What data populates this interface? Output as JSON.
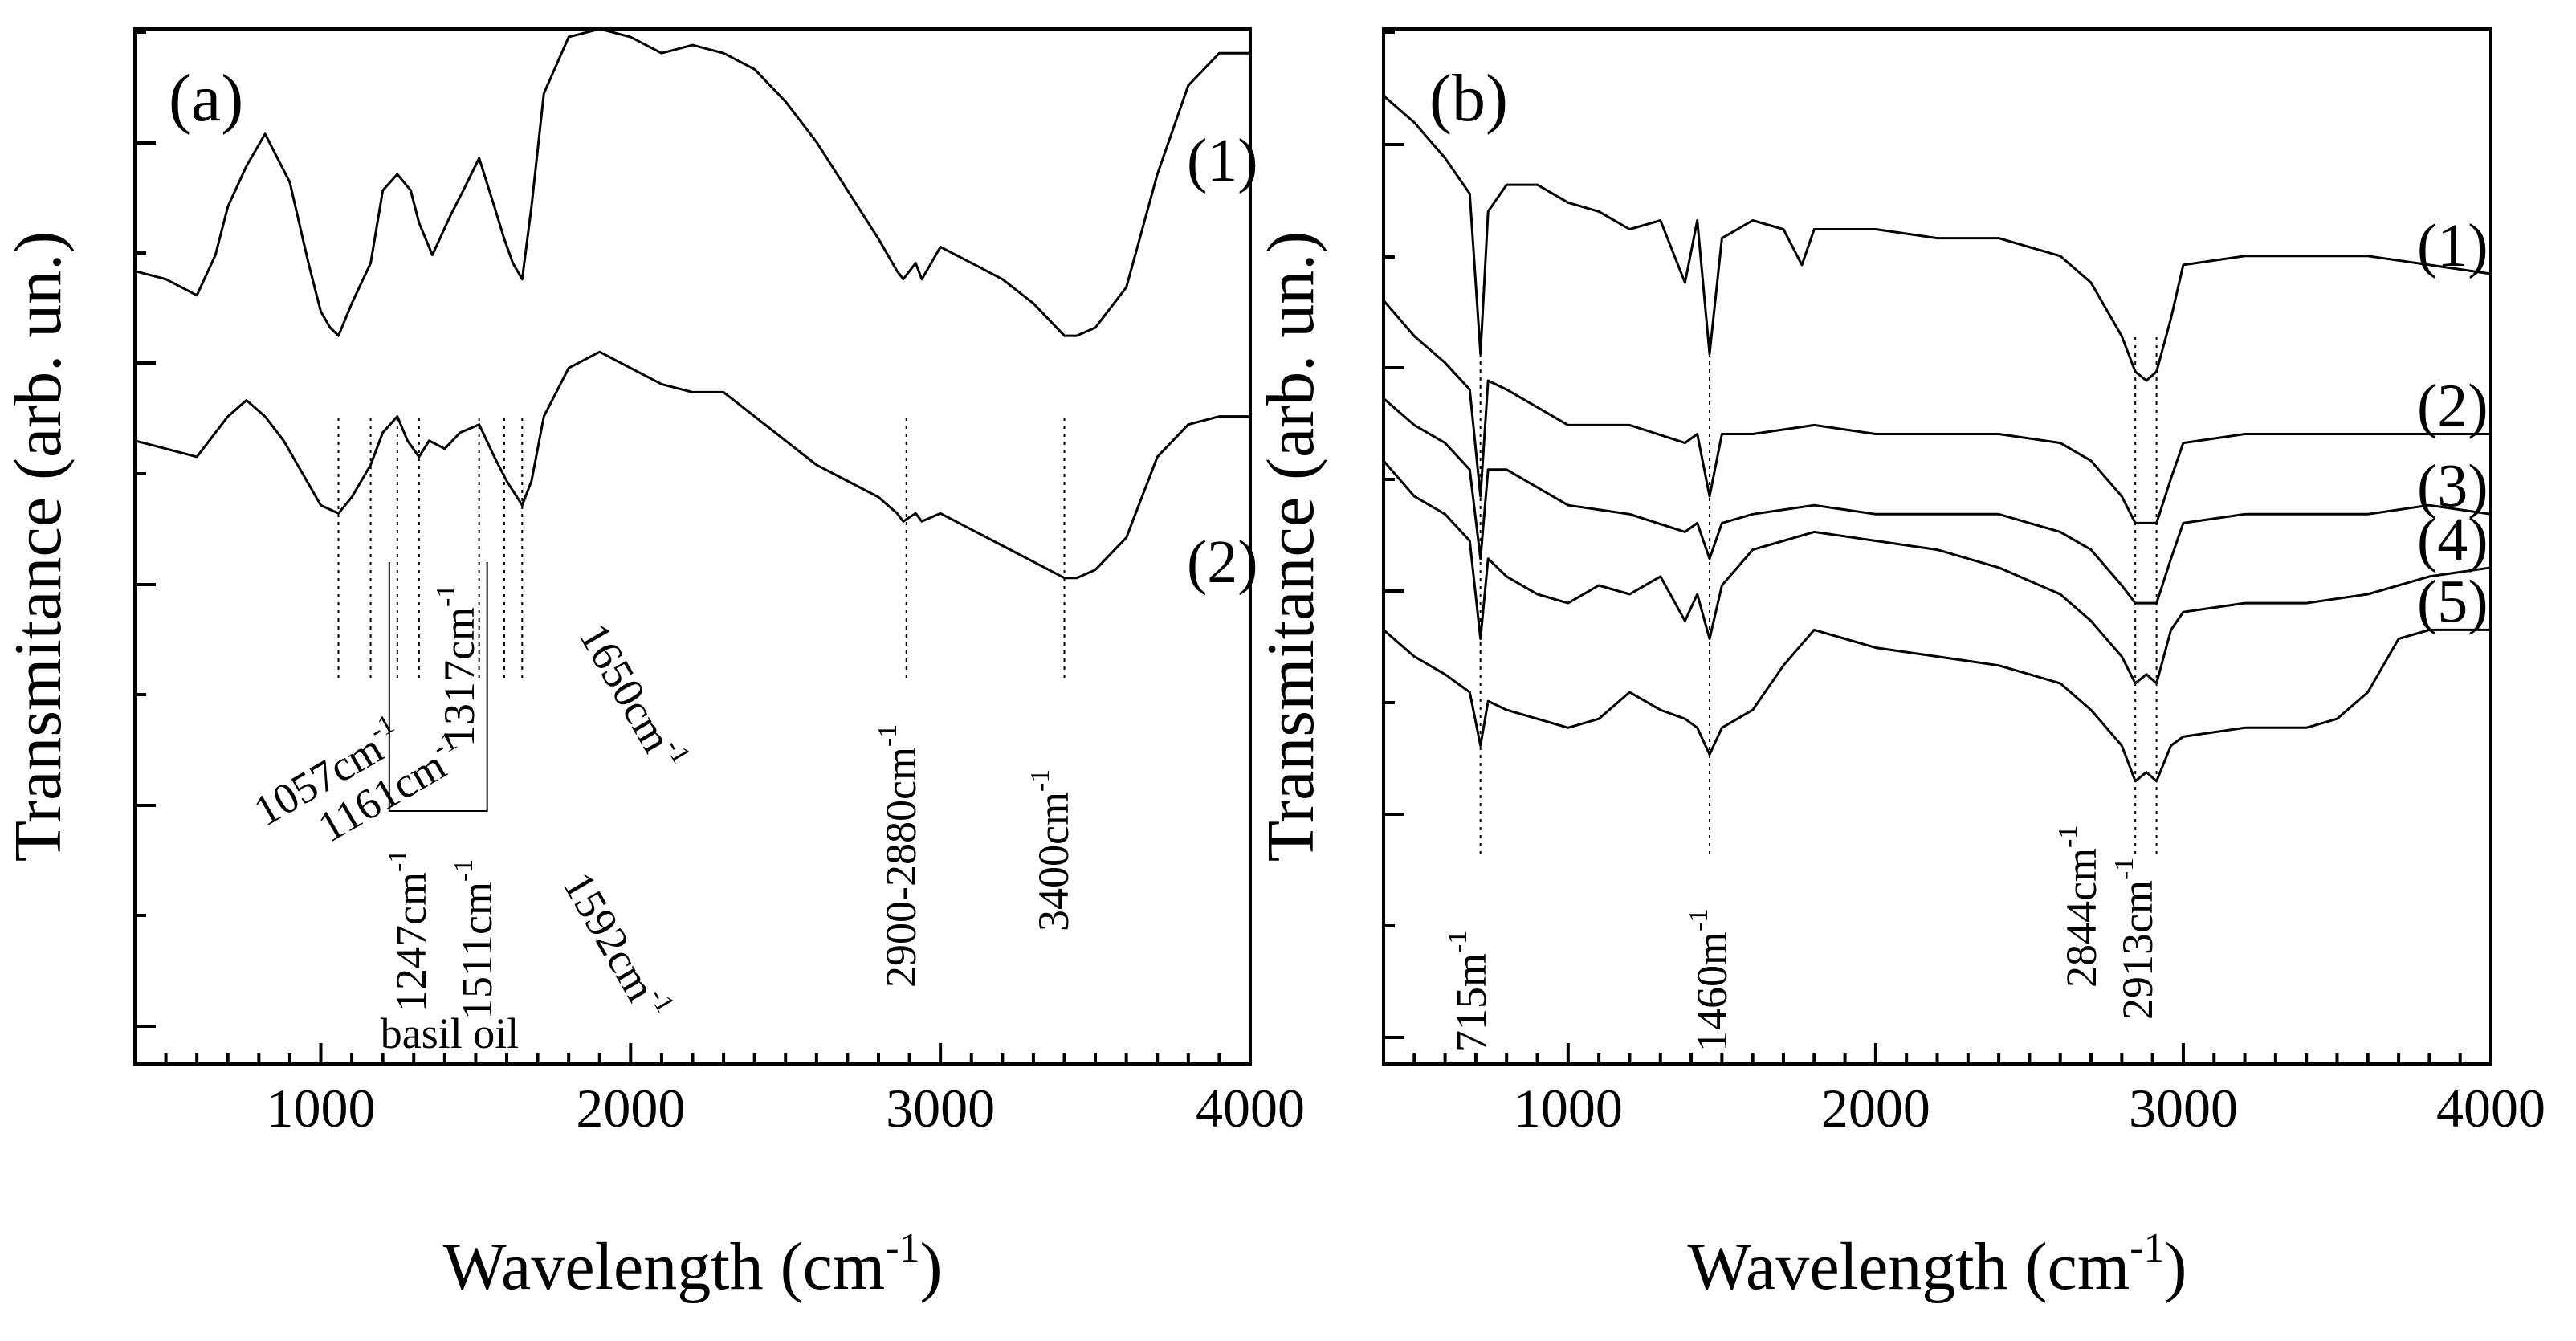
{
  "chart_data": [
    {
      "type": "line",
      "panel_label": "(a)",
      "xlabel": "Wavelength (cm",
      "xlabel_sup": "-1",
      "xlabel_end": ")",
      "ylabel": "Transmitance (arb. un.)",
      "xlim": [
        400,
        4000
      ],
      "ylim": [
        0,
        1
      ],
      "xticks": [
        1000,
        2000,
        3000,
        4000
      ],
      "xtick_labels": [
        "1000",
        "2000",
        "3000",
        "4000"
      ],
      "y_tick_labels_shown": false,
      "series": [
        {
          "name": "(1)",
          "x": [
            400,
            500,
            600,
            660,
            700,
            760,
            820,
            900,
            960,
            1000,
            1030,
            1057,
            1100,
            1161,
            1200,
            1247,
            1290,
            1317,
            1360,
            1420,
            1460,
            1511,
            1560,
            1592,
            1620,
            1650,
            1680,
            1720,
            1800,
            1900,
            2000,
            2100,
            2200,
            2300,
            2400,
            2500,
            2600,
            2700,
            2800,
            2860,
            2880,
            2920,
            2940,
            3000,
            3100,
            3200,
            3300,
            3400,
            3440,
            3500,
            3600,
            3700,
            3800,
            3900,
            4000
          ],
          "y": [
            0.7,
            0.69,
            0.67,
            0.72,
            0.78,
            0.83,
            0.87,
            0.81,
            0.71,
            0.65,
            0.63,
            0.62,
            0.66,
            0.71,
            0.8,
            0.82,
            0.8,
            0.76,
            0.72,
            0.77,
            0.8,
            0.84,
            0.78,
            0.74,
            0.71,
            0.69,
            0.78,
            0.92,
            0.99,
            1.0,
            0.99,
            0.97,
            0.98,
            0.97,
            0.95,
            0.91,
            0.86,
            0.8,
            0.74,
            0.7,
            0.69,
            0.71,
            0.69,
            0.73,
            0.71,
            0.69,
            0.66,
            0.62,
            0.62,
            0.63,
            0.68,
            0.82,
            0.93,
            0.97,
            0.97
          ]
        },
        {
          "name": "(2)",
          "x": [
            400,
            500,
            600,
            700,
            760,
            820,
            880,
            940,
            1000,
            1057,
            1100,
            1161,
            1200,
            1247,
            1280,
            1317,
            1350,
            1400,
            1450,
            1511,
            1560,
            1600,
            1650,
            1680,
            1720,
            1800,
            1900,
            2000,
            2100,
            2200,
            2300,
            2400,
            2500,
            2600,
            2700,
            2800,
            2860,
            2880,
            2920,
            2940,
            3000,
            3100,
            3200,
            3300,
            3400,
            3440,
            3500,
            3600,
            3700,
            3800,
            3900,
            4000
          ],
          "y": [
            0.49,
            0.48,
            0.47,
            0.52,
            0.54,
            0.52,
            0.49,
            0.45,
            0.41,
            0.4,
            0.42,
            0.46,
            0.5,
            0.52,
            0.49,
            0.47,
            0.49,
            0.48,
            0.5,
            0.51,
            0.47,
            0.44,
            0.41,
            0.44,
            0.52,
            0.58,
            0.6,
            0.58,
            0.56,
            0.55,
            0.55,
            0.52,
            0.49,
            0.46,
            0.44,
            0.42,
            0.4,
            0.39,
            0.4,
            0.39,
            0.4,
            0.38,
            0.36,
            0.34,
            0.32,
            0.32,
            0.33,
            0.37,
            0.47,
            0.51,
            0.52,
            0.52
          ]
        }
      ],
      "annotations": [
        {
          "x": 1057,
          "text": "1057cm",
          "sup": "-1"
        },
        {
          "x": 1161,
          "text": "1161cm",
          "sup": "-1"
        },
        {
          "x": 1247,
          "text": "1247cm",
          "sup": "-1"
        },
        {
          "x": 1317,
          "text": "1317cm",
          "sup": "-1"
        },
        {
          "x": 1511,
          "text": "1511cm",
          "sup": "-1"
        },
        {
          "x": 1592,
          "text": "1592cm",
          "sup": "-1"
        },
        {
          "x": 1650,
          "text": "1650cm",
          "sup": "-1"
        },
        {
          "x": 2890,
          "text": "2900-2880cm",
          "sup": "-1"
        },
        {
          "x": 3400,
          "text": "3400cm",
          "sup": "-1"
        }
      ],
      "bracket_label": "basil oil"
    },
    {
      "type": "line",
      "panel_label": "(b)",
      "xlabel": "Wavelength (cm",
      "xlabel_sup": "-1",
      "xlabel_end": ")",
      "ylabel": "Transmitance (arb. un.)",
      "xlim": [
        400,
        4000
      ],
      "ylim": [
        0,
        1
      ],
      "xticks": [
        1000,
        2000,
        3000,
        4000
      ],
      "xtick_labels": [
        "1000",
        "2000",
        "3000",
        "4000"
      ],
      "y_tick_labels_shown": false,
      "series": [
        {
          "name": "(1)",
          "x": [
            400,
            500,
            600,
            680,
            715,
            740,
            800,
            900,
            1000,
            1100,
            1200,
            1300,
            1380,
            1420,
            1460,
            1500,
            1600,
            1700,
            1760,
            1800,
            1900,
            2000,
            2200,
            2400,
            2600,
            2700,
            2800,
            2844,
            2880,
            2913,
            2960,
            3000,
            3200,
            3400,
            3600,
            3800,
            4000
          ],
          "y": [
            0.97,
            0.94,
            0.9,
            0.86,
            0.68,
            0.84,
            0.87,
            0.87,
            0.85,
            0.84,
            0.82,
            0.83,
            0.76,
            0.83,
            0.68,
            0.81,
            0.83,
            0.82,
            0.78,
            0.82,
            0.82,
            0.82,
            0.81,
            0.81,
            0.79,
            0.76,
            0.7,
            0.66,
            0.65,
            0.66,
            0.72,
            0.78,
            0.79,
            0.79,
            0.79,
            0.78,
            0.77
          ]
        },
        {
          "name": "(2)",
          "x": [
            400,
            500,
            600,
            680,
            715,
            740,
            800,
            900,
            1000,
            1200,
            1380,
            1420,
            1460,
            1500,
            1600,
            1800,
            2000,
            2200,
            2400,
            2600,
            2700,
            2800,
            2844,
            2880,
            2913,
            2960,
            3000,
            3200,
            3400,
            3600,
            3800,
            4000
          ],
          "y": [
            0.74,
            0.7,
            0.67,
            0.64,
            0.52,
            0.65,
            0.64,
            0.62,
            0.6,
            0.6,
            0.58,
            0.59,
            0.52,
            0.59,
            0.59,
            0.6,
            0.59,
            0.59,
            0.59,
            0.58,
            0.56,
            0.52,
            0.49,
            0.49,
            0.49,
            0.54,
            0.58,
            0.59,
            0.59,
            0.59,
            0.59,
            0.59
          ]
        },
        {
          "name": "(3)",
          "x": [
            400,
            500,
            600,
            680,
            715,
            740,
            800,
            900,
            1000,
            1200,
            1380,
            1420,
            1460,
            1500,
            1600,
            1800,
            2000,
            2200,
            2400,
            2600,
            2700,
            2800,
            2844,
            2880,
            2913,
            2960,
            3000,
            3200,
            3400,
            3600,
            3800,
            4000
          ],
          "y": [
            0.63,
            0.6,
            0.58,
            0.55,
            0.45,
            0.55,
            0.55,
            0.53,
            0.51,
            0.5,
            0.48,
            0.49,
            0.45,
            0.49,
            0.5,
            0.51,
            0.5,
            0.5,
            0.5,
            0.48,
            0.46,
            0.42,
            0.4,
            0.4,
            0.4,
            0.45,
            0.49,
            0.5,
            0.5,
            0.5,
            0.51,
            0.5
          ]
        },
        {
          "name": "(4)",
          "x": [
            400,
            500,
            600,
            680,
            715,
            740,
            800,
            900,
            1000,
            1100,
            1200,
            1300,
            1380,
            1420,
            1460,
            1500,
            1600,
            1700,
            1800,
            2000,
            2200,
            2400,
            2600,
            2700,
            2800,
            2844,
            2880,
            2913,
            2960,
            3000,
            3200,
            3400,
            3600,
            3800,
            4000
          ],
          "y": [
            0.56,
            0.52,
            0.5,
            0.47,
            0.36,
            0.45,
            0.43,
            0.41,
            0.4,
            0.42,
            0.41,
            0.43,
            0.38,
            0.41,
            0.36,
            0.42,
            0.46,
            0.47,
            0.48,
            0.47,
            0.46,
            0.44,
            0.41,
            0.38,
            0.34,
            0.31,
            0.32,
            0.31,
            0.37,
            0.39,
            0.4,
            0.4,
            0.41,
            0.43,
            0.44
          ]
        },
        {
          "name": "(5)",
          "x": [
            400,
            500,
            600,
            680,
            715,
            740,
            800,
            900,
            1000,
            1100,
            1200,
            1300,
            1380,
            1420,
            1460,
            1500,
            1600,
            1700,
            1800,
            1900,
            2000,
            2200,
            2400,
            2600,
            2700,
            2800,
            2844,
            2880,
            2913,
            2960,
            3000,
            3200,
            3400,
            3500,
            3600,
            3700,
            3800,
            4000
          ],
          "y": [
            0.37,
            0.34,
            0.32,
            0.3,
            0.24,
            0.29,
            0.28,
            0.27,
            0.26,
            0.27,
            0.3,
            0.28,
            0.27,
            0.26,
            0.23,
            0.26,
            0.28,
            0.33,
            0.37,
            0.36,
            0.35,
            0.34,
            0.33,
            0.31,
            0.28,
            0.24,
            0.2,
            0.21,
            0.2,
            0.24,
            0.25,
            0.26,
            0.26,
            0.27,
            0.3,
            0.36,
            0.37,
            0.37
          ]
        }
      ],
      "annotations": [
        {
          "x": 715,
          "text": "715m",
          "sup": "-1"
        },
        {
          "x": 1460,
          "text": "1460m",
          "sup": "-1"
        },
        {
          "x": 2844,
          "text": "2844cm",
          "sup": "-1"
        },
        {
          "x": 2913,
          "text": "2913cm",
          "sup": "-1"
        }
      ]
    }
  ]
}
